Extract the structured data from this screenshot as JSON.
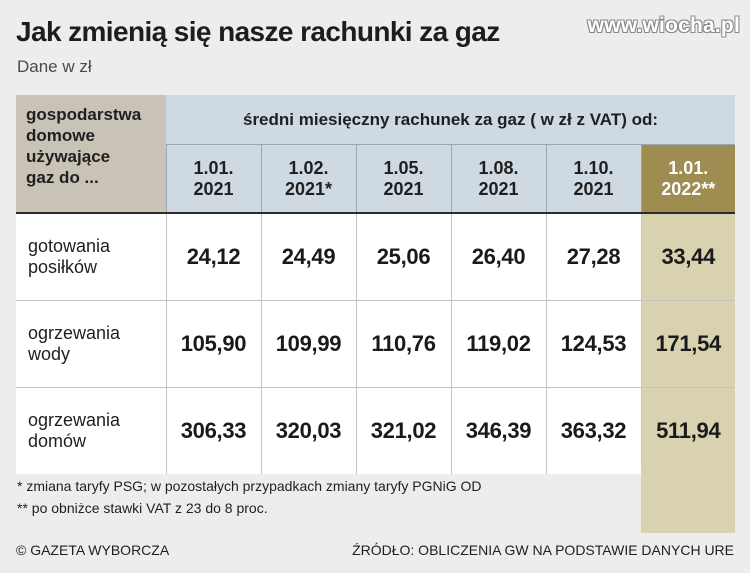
{
  "title": "Jak zmienią się nasze rachunki za gaz",
  "subtitle": "Dane w zł",
  "watermark": "www.wiocha.pl",
  "table": {
    "corner_lines": [
      "gospodarstwa",
      "domowe",
      "używające",
      "gaz do ..."
    ],
    "span_header": "średni miesięczny rachunek za gaz ( w zł z VAT) od:",
    "dates": [
      {
        "line1": "1.01.",
        "line2": "2021"
      },
      {
        "line1": "1.02.",
        "line2": "2021*"
      },
      {
        "line1": "1.05.",
        "line2": "2021"
      },
      {
        "line1": "1.08.",
        "line2": "2021"
      },
      {
        "line1": "1.10.",
        "line2": "2021"
      },
      {
        "line1": "1.01.",
        "line2": "2022**"
      }
    ],
    "rows": [
      {
        "label_line1": "gotowania",
        "label_line2": "posiłków",
        "values": [
          "24,12",
          "24,49",
          "25,06",
          "26,40",
          "27,28",
          "33,44"
        ]
      },
      {
        "label_line1": "ogrzewania",
        "label_line2": "wody",
        "values": [
          "105,90",
          "109,99",
          "110,76",
          "119,02",
          "124,53",
          "171,54"
        ]
      },
      {
        "label_line1": "ogrzewania",
        "label_line2": "domów",
        "values": [
          "306,33",
          "320,03",
          "321,02",
          "346,39",
          "363,32",
          "511,94"
        ]
      }
    ]
  },
  "footnotes": [
    "* zmiana taryfy PSG; w pozostałych przypadkach zmiany taryfy PGNiG OD",
    "** po obniżce stawki VAT z 23 do 8 proc."
  ],
  "credit": "© GAZETA WYBORCZA",
  "source": "ŹRÓDŁO: OBLICZENIA GW NA PODSTAWIE DANYCH URE",
  "colors": {
    "background": "#ededed",
    "corner_header": "#c9c2b6",
    "date_header": "#cfd9e2",
    "highlight_header": "#9e8c50",
    "highlight_cells": "#d9d2b0"
  }
}
